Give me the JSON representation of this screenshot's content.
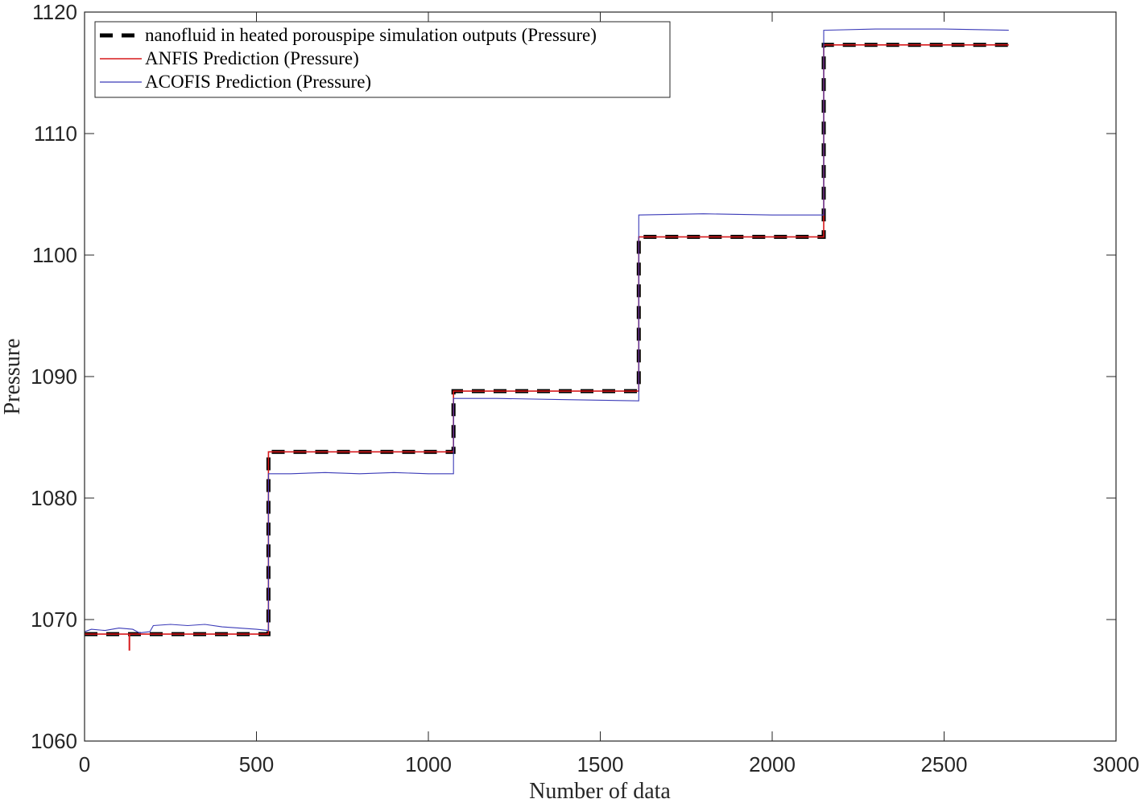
{
  "chart_data": {
    "type": "line",
    "xlabel": "Number of data",
    "ylabel": "Pressure",
    "xlim": [
      0,
      3000
    ],
    "ylim": [
      1060,
      1120
    ],
    "xticks": [
      0,
      500,
      1000,
      1500,
      2000,
      2500,
      3000
    ],
    "yticks": [
      1060,
      1070,
      1080,
      1090,
      1100,
      1110,
      1120
    ],
    "grid": false,
    "legend_position": "top-left",
    "series": [
      {
        "name": "nanofluid in heated porouspipe simulation outputs (Pressure)",
        "color": "#000000",
        "style": "dashed",
        "x": [
          0,
          535,
          535,
          1073,
          1073,
          1612,
          1612,
          2150,
          2150,
          2688
        ],
        "y": [
          1068.8,
          1068.8,
          1083.8,
          1083.8,
          1088.8,
          1088.8,
          1101.5,
          1101.5,
          1117.3,
          1117.3
        ]
      },
      {
        "name": "ANFIS Prediction (Pressure)",
        "color": "#d7191c",
        "style": "solid",
        "x": [
          0,
          130,
          130,
          131,
          131,
          535,
          535,
          1073,
          1073,
          1612,
          1612,
          2150,
          2150,
          2688
        ],
        "y": [
          1068.8,
          1068.8,
          1067.5,
          1067.5,
          1068.8,
          1068.8,
          1083.8,
          1083.8,
          1088.8,
          1088.8,
          1101.5,
          1101.5,
          1117.3,
          1117.3
        ]
      },
      {
        "name": "ACOFIS Prediction (Pressure)",
        "color": "#3b3bb8",
        "style": "solid",
        "x": [
          0,
          20,
          60,
          100,
          140,
          160,
          190,
          200,
          250,
          300,
          350,
          400,
          450,
          500,
          535,
          535,
          600,
          700,
          800,
          900,
          1000,
          1073,
          1073,
          1200,
          1400,
          1612,
          1612,
          1800,
          2000,
          2150,
          2150,
          2300,
          2500,
          2688
        ],
        "y": [
          1069.0,
          1069.2,
          1069.1,
          1069.3,
          1069.2,
          1068.9,
          1069.0,
          1069.5,
          1069.6,
          1069.5,
          1069.6,
          1069.4,
          1069.3,
          1069.2,
          1069.1,
          1082.0,
          1082.0,
          1082.1,
          1082.0,
          1082.1,
          1082.0,
          1082.0,
          1088.2,
          1088.2,
          1088.1,
          1088.0,
          1103.3,
          1103.4,
          1103.3,
          1103.3,
          1118.5,
          1118.6,
          1118.6,
          1118.5
        ]
      }
    ]
  }
}
